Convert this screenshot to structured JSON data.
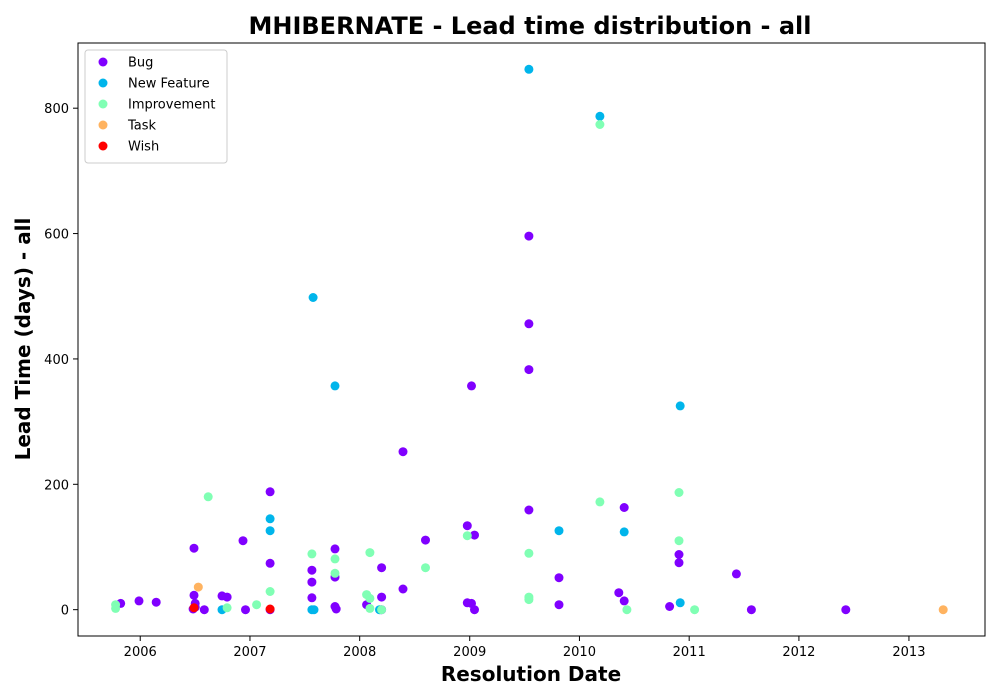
{
  "chart_data": {
    "type": "scatter",
    "title": "MHIBERNATE - Lead time distribution - all",
    "xlabel": "Resolution Date",
    "ylabel": "Lead Time (days) - all",
    "xlim": [
      "2005-06-08",
      "2013-09-11"
    ],
    "ylim": [
      -42,
      904
    ],
    "x_ticks": [
      "2006",
      "2007",
      "2008",
      "2009",
      "2010",
      "2011",
      "2012",
      "2013"
    ],
    "y_ticks": [
      0,
      200,
      400,
      600,
      800
    ],
    "grid": false,
    "legend_position": "top-left",
    "series": [
      {
        "name": "Bug",
        "color": "#8000ff",
        "points": [
          {
            "x": "2005-10-28",
            "y": 10
          },
          {
            "x": "2005-12-28",
            "y": 14
          },
          {
            "x": "2006-02-23",
            "y": 12
          },
          {
            "x": "2006-06-29",
            "y": 98
          },
          {
            "x": "2006-06-29",
            "y": 23
          },
          {
            "x": "2006-07-03",
            "y": 10
          },
          {
            "x": "2006-07-03",
            "y": 4
          },
          {
            "x": "2006-06-26",
            "y": 1
          },
          {
            "x": "2006-08-02",
            "y": 0
          },
          {
            "x": "2006-09-30",
            "y": 22
          },
          {
            "x": "2006-10-17",
            "y": 20
          },
          {
            "x": "2006-12-09",
            "y": 110
          },
          {
            "x": "2006-12-17",
            "y": 0
          },
          {
            "x": "2007-03-09",
            "y": 188
          },
          {
            "x": "2007-03-09",
            "y": 74
          },
          {
            "x": "2007-03-09",
            "y": 0
          },
          {
            "x": "2007-07-26",
            "y": 63
          },
          {
            "x": "2007-07-26",
            "y": 44
          },
          {
            "x": "2007-07-26",
            "y": 19
          },
          {
            "x": "2007-10-11",
            "y": 97
          },
          {
            "x": "2007-10-11",
            "y": 52
          },
          {
            "x": "2007-10-11",
            "y": 5
          },
          {
            "x": "2007-10-15",
            "y": 1
          },
          {
            "x": "2008-01-24",
            "y": 8
          },
          {
            "x": "2008-03-14",
            "y": 67
          },
          {
            "x": "2008-03-14",
            "y": 20
          },
          {
            "x": "2008-03-14",
            "y": 0
          },
          {
            "x": "2008-05-24",
            "y": 252
          },
          {
            "x": "2008-05-24",
            "y": 33
          },
          {
            "x": "2008-08-07",
            "y": 111
          },
          {
            "x": "2008-12-24",
            "y": 134
          },
          {
            "x": "2008-12-24",
            "y": 11
          },
          {
            "x": "2009-01-07",
            "y": 357
          },
          {
            "x": "2009-01-07",
            "y": 10
          },
          {
            "x": "2009-01-17",
            "y": 119
          },
          {
            "x": "2009-01-17",
            "y": 0
          },
          {
            "x": "2009-07-17",
            "y": 596
          },
          {
            "x": "2009-07-17",
            "y": 456
          },
          {
            "x": "2009-07-17",
            "y": 383
          },
          {
            "x": "2009-07-17",
            "y": 159
          },
          {
            "x": "2009-10-25",
            "y": 51
          },
          {
            "x": "2009-10-25",
            "y": 8
          },
          {
            "x": "2010-05-12",
            "y": 27
          },
          {
            "x": "2010-05-30",
            "y": 163
          },
          {
            "x": "2010-05-30",
            "y": 14
          },
          {
            "x": "2010-10-28",
            "y": 5
          },
          {
            "x": "2010-11-28",
            "y": 88
          },
          {
            "x": "2010-11-28",
            "y": 75
          },
          {
            "x": "2011-06-07",
            "y": 57
          },
          {
            "x": "2011-07-27",
            "y": 0
          },
          {
            "x": "2012-06-05",
            "y": 0
          }
        ]
      },
      {
        "name": "New Feature",
        "color": "#00b5eb",
        "points": [
          {
            "x": "2006-09-30",
            "y": 0
          },
          {
            "x": "2007-03-09",
            "y": 145
          },
          {
            "x": "2007-03-09",
            "y": 126
          },
          {
            "x": "2007-07-26",
            "y": 0
          },
          {
            "x": "2007-07-30",
            "y": 498
          },
          {
            "x": "2007-08-02",
            "y": 0
          },
          {
            "x": "2007-10-11",
            "y": 357
          },
          {
            "x": "2008-03-07",
            "y": 0
          },
          {
            "x": "2009-07-17",
            "y": 862
          },
          {
            "x": "2009-10-25",
            "y": 126
          },
          {
            "x": "2010-03-10",
            "y": 787
          },
          {
            "x": "2010-05-30",
            "y": 124
          },
          {
            "x": "2010-12-02",
            "y": 325
          },
          {
            "x": "2010-12-02",
            "y": 11
          }
        ]
      },
      {
        "name": "Improvement",
        "color": "#80ffb4",
        "points": [
          {
            "x": "2005-10-11",
            "y": 8
          },
          {
            "x": "2005-10-11",
            "y": 2
          },
          {
            "x": "2006-08-15",
            "y": 180
          },
          {
            "x": "2006-10-17",
            "y": 3
          },
          {
            "x": "2007-01-23",
            "y": 8
          },
          {
            "x": "2007-03-09",
            "y": 29
          },
          {
            "x": "2007-07-26",
            "y": 89
          },
          {
            "x": "2007-10-11",
            "y": 81
          },
          {
            "x": "2007-10-11",
            "y": 58
          },
          {
            "x": "2008-01-24",
            "y": 24
          },
          {
            "x": "2008-02-04",
            "y": 91
          },
          {
            "x": "2008-02-04",
            "y": 18
          },
          {
            "x": "2008-02-04",
            "y": 2
          },
          {
            "x": "2008-03-14",
            "y": 0
          },
          {
            "x": "2008-08-07",
            "y": 67
          },
          {
            "x": "2008-12-24",
            "y": 118
          },
          {
            "x": "2009-07-17",
            "y": 90
          },
          {
            "x": "2009-07-17",
            "y": 20
          },
          {
            "x": "2009-07-17",
            "y": 16
          },
          {
            "x": "2010-03-10",
            "y": 774
          },
          {
            "x": "2010-03-10",
            "y": 172
          },
          {
            "x": "2010-06-08",
            "y": 0
          },
          {
            "x": "2010-11-28",
            "y": 187
          },
          {
            "x": "2010-11-28",
            "y": 110
          },
          {
            "x": "2011-01-19",
            "y": 0
          }
        ]
      },
      {
        "name": "Task",
        "color": "#ffb360",
        "points": [
          {
            "x": "2006-07-13",
            "y": 36
          },
          {
            "x": "2013-04-25",
            "y": 0
          }
        ]
      },
      {
        "name": "Wish",
        "color": "#ff0000",
        "points": [
          {
            "x": "2006-06-29",
            "y": 3
          },
          {
            "x": "2007-03-09",
            "y": 1
          }
        ]
      }
    ]
  }
}
